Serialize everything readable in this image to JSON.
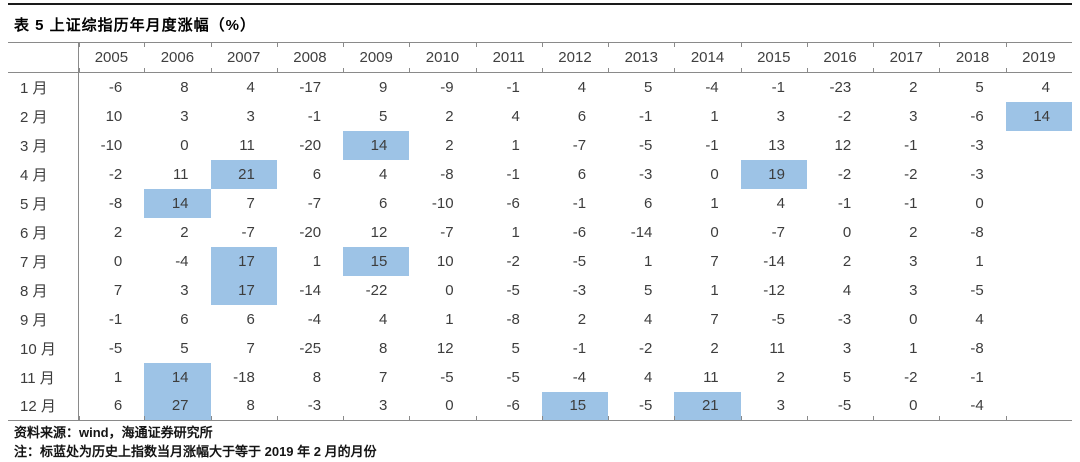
{
  "title": "表 5 上证综指历年月度涨幅（%）",
  "table": {
    "corner_label": "",
    "years": [
      "2005",
      "2006",
      "2007",
      "2008",
      "2009",
      "2010",
      "2011",
      "2012",
      "2013",
      "2014",
      "2015",
      "2016",
      "2017",
      "2018",
      "2019"
    ],
    "rows": [
      {
        "month": "1 月",
        "values": [
          -6,
          8,
          4,
          -17,
          9,
          -9,
          -1,
          4,
          5,
          -4,
          -1,
          -23,
          2,
          5,
          4
        ]
      },
      {
        "month": "2 月",
        "values": [
          10,
          3,
          3,
          -1,
          5,
          2,
          4,
          6,
          -1,
          1,
          3,
          -2,
          3,
          -6,
          14
        ]
      },
      {
        "month": "3 月",
        "values": [
          -10,
          0,
          11,
          -20,
          14,
          2,
          1,
          -7,
          -5,
          -1,
          13,
          12,
          -1,
          -3,
          null
        ]
      },
      {
        "month": "4 月",
        "values": [
          -2,
          11,
          21,
          6,
          4,
          -8,
          -1,
          6,
          -3,
          0,
          19,
          -2,
          -2,
          -3,
          null
        ]
      },
      {
        "month": "5 月",
        "values": [
          -8,
          14,
          7,
          -7,
          6,
          -10,
          -6,
          -1,
          6,
          1,
          4,
          -1,
          -1,
          0,
          null
        ]
      },
      {
        "month": "6 月",
        "values": [
          2,
          2,
          -7,
          -20,
          12,
          -7,
          1,
          -6,
          -14,
          0,
          -7,
          0,
          2,
          -8,
          null
        ]
      },
      {
        "month": "7 月",
        "values": [
          0,
          -4,
          17,
          1,
          15,
          10,
          -2,
          -5,
          1,
          7,
          -14,
          2,
          3,
          1,
          null
        ]
      },
      {
        "month": "8 月",
        "values": [
          7,
          3,
          17,
          -14,
          -22,
          0,
          -5,
          -3,
          5,
          1,
          -12,
          4,
          3,
          -5,
          null
        ]
      },
      {
        "month": "9 月",
        "values": [
          -1,
          6,
          6,
          -4,
          4,
          1,
          -8,
          2,
          4,
          7,
          -5,
          -3,
          0,
          4,
          null
        ]
      },
      {
        "month": "10 月",
        "values": [
          -5,
          5,
          7,
          -25,
          8,
          12,
          5,
          -1,
          -2,
          2,
          11,
          3,
          1,
          -8,
          null
        ]
      },
      {
        "month": "11 月",
        "values": [
          1,
          14,
          -18,
          8,
          7,
          -5,
          -5,
          -4,
          4,
          11,
          2,
          5,
          -2,
          -1,
          null
        ]
      },
      {
        "month": "12 月",
        "values": [
          6,
          27,
          8,
          -3,
          3,
          0,
          -6,
          15,
          -5,
          21,
          3,
          -5,
          0,
          -4,
          null
        ]
      }
    ],
    "highlight_threshold": 14,
    "highlight_color": "#9DC3E6"
  },
  "footer": {
    "source": "资料来源：wind，海通证券研究所",
    "note": "注：标蓝处为历史上指数当月涨幅大于等于 2019 年 2 月的月份"
  }
}
